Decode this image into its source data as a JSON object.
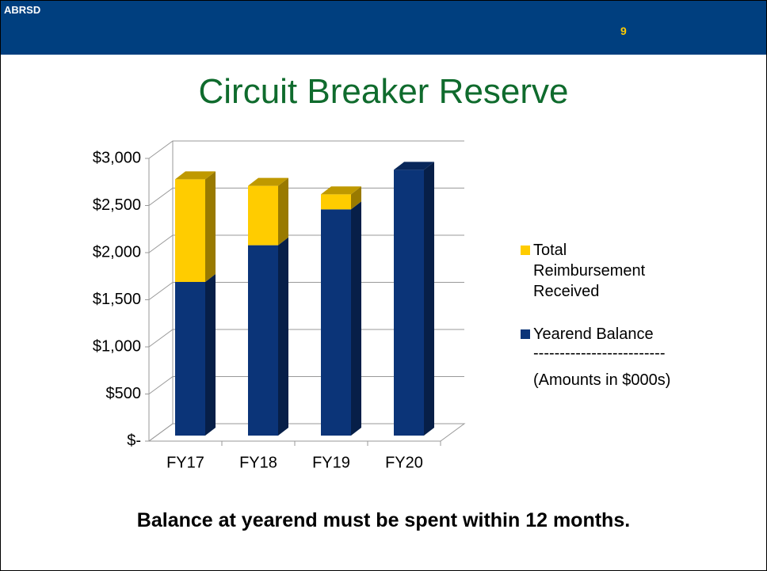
{
  "header": {
    "org": "ABRSD",
    "page_number": "9"
  },
  "chart_data": {
    "type": "bar3d_stacked",
    "title": "Circuit Breaker Reserve",
    "categories": [
      "FY17",
      "FY18",
      "FY19",
      "FY20"
    ],
    "series": [
      {
        "name": "Yearend Balance",
        "color": "#0b3478",
        "values": [
          1630,
          2020,
          2400,
          2820
        ]
      },
      {
        "name": "Total Reimbursement Received",
        "color": "#ffcc00",
        "values": [
          1090,
          630,
          160,
          0
        ]
      }
    ],
    "ylim": [
      0,
      3000
    ],
    "yticks": [
      {
        "value": 0,
        "label": "$-"
      },
      {
        "value": 500,
        "label": "$500"
      },
      {
        "value": 1000,
        "label": "$1,000"
      },
      {
        "value": 1500,
        "label": "$1,500"
      },
      {
        "value": 2000,
        "label": "$2,000"
      },
      {
        "value": 2500,
        "label": "$2,500"
      },
      {
        "value": 3000,
        "label": "$3,000"
      }
    ],
    "grid": true,
    "legend": "right",
    "annotations": [
      "-------------------------",
      "(Amounts in $000s)"
    ]
  },
  "footer": {
    "note": "Balance at yearend must be spent within 12 months."
  }
}
